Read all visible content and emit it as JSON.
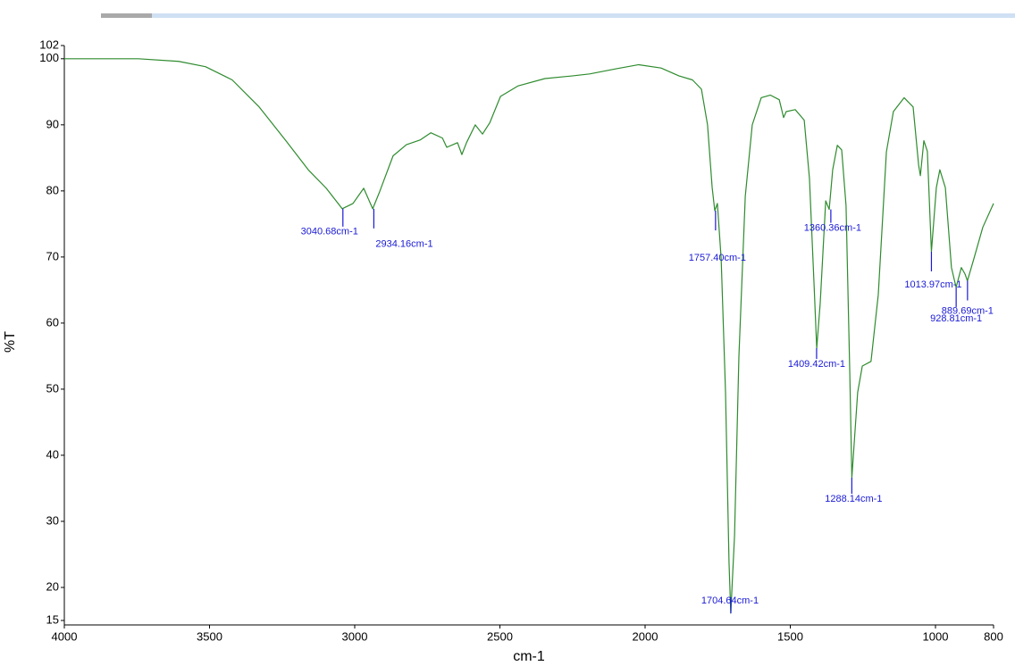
{
  "chart_data": {
    "type": "line",
    "x_label": "cm-1",
    "y_label": "%T",
    "xlim": [
      4000,
      800
    ],
    "ylim": [
      15,
      102
    ],
    "xticks": [
      4000,
      3500,
      3000,
      2500,
      2000,
      1500,
      1000,
      800
    ],
    "yticks": [
      15,
      20,
      30,
      40,
      50,
      60,
      70,
      80,
      90,
      100,
      102
    ],
    "grid": false,
    "series": [
      {
        "color": "#2e8b2e",
        "x": [
          4000,
          3745,
          3606,
          3514,
          3422,
          3329,
          3237,
          3160,
          3098,
          3043,
          3006,
          2969,
          2938,
          2914,
          2868,
          2822,
          2775,
          2738,
          2698,
          2683,
          2662,
          2646,
          2631,
          2615,
          2585,
          2560,
          2535,
          2498,
          2437,
          2345,
          2252,
          2191,
          2098,
          2022,
          1945,
          1883,
          1837,
          1806,
          1785,
          1769,
          1760,
          1751,
          1738,
          1723,
          1711,
          1705,
          1692,
          1677,
          1655,
          1631,
          1600,
          1569,
          1538,
          1523,
          1514,
          1483,
          1452,
          1434,
          1418,
          1409,
          1397,
          1378,
          1366,
          1354,
          1338,
          1323,
          1308,
          1295,
          1288,
          1268,
          1252,
          1222,
          1197,
          1169,
          1145,
          1108,
          1077,
          1058,
          1052,
          1040,
          1028,
          1014,
          997,
          985,
          966,
          945,
          929,
          911,
          898,
          890,
          868,
          837,
          800
        ],
        "values": [
          100,
          100,
          99.6,
          98.8,
          96.8,
          92.7,
          87.6,
          83.2,
          80.4,
          77.3,
          78.1,
          80.4,
          77.3,
          79.9,
          85.3,
          87.0,
          87.7,
          88.8,
          88.0,
          86.6,
          87.0,
          87.3,
          85.5,
          87.3,
          90.0,
          88.6,
          90.3,
          94.3,
          95.9,
          97.0,
          97.4,
          97.7,
          98.5,
          99.1,
          98.6,
          97.4,
          96.8,
          95.4,
          90.0,
          80.5,
          77.0,
          78.1,
          69.7,
          49.5,
          23.8,
          16.1,
          27.8,
          54.9,
          79.2,
          90.0,
          94.1,
          94.5,
          93.8,
          91.1,
          92.0,
          92.3,
          90.7,
          81.9,
          65.7,
          56.2,
          63.0,
          78.5,
          77.2,
          83.2,
          86.9,
          86.2,
          77.8,
          52.2,
          36.6,
          49.5,
          53.5,
          54.2,
          64.3,
          85.9,
          92.0,
          94.1,
          92.7,
          83.9,
          82.3,
          87.6,
          86.0,
          70.8,
          80.5,
          83.2,
          80.5,
          68.4,
          65.4,
          68.4,
          67.4,
          66.4,
          69.7,
          74.5,
          78.1
        ]
      }
    ],
    "annotations": [
      {
        "label": "3040.68cm-1",
        "x": 3040.68,
        "y": 77.3
      },
      {
        "label": "2934.16cm-1",
        "x": 2934.16,
        "y": 77.3
      },
      {
        "label": "1757.40cm-1",
        "x": 1757.4,
        "y": 77.0
      },
      {
        "label": "1704.64cm-1",
        "x": 1704.64,
        "y": 16.1
      },
      {
        "label": "1409.42cm-1",
        "x": 1409.42,
        "y": 56.2
      },
      {
        "label": "1360.36cm-1",
        "x": 1360.36,
        "y": 77.2
      },
      {
        "label": "1288.14cm-1",
        "x": 1288.14,
        "y": 36.6
      },
      {
        "label": "1013.97cm-1",
        "x": 1013.97,
        "y": 70.8
      },
      {
        "label": "928.81cm-1",
        "x": 928.81,
        "y": 65.4
      },
      {
        "label": "889.69cm-1",
        "x": 889.69,
        "y": 66.4
      }
    ]
  }
}
